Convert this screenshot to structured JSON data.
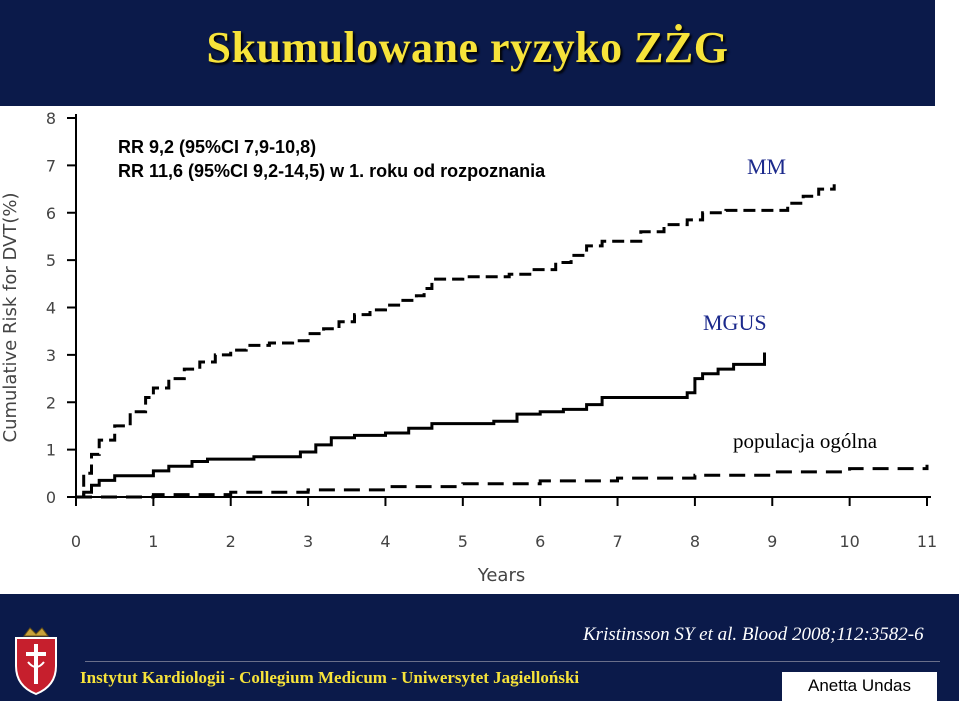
{
  "slide": {
    "title": "Skumulowane ryzyko ZŻG",
    "notes": [
      "RR 9,2 (95%CI 7,9-10,8)",
      "RR 11,6 (95%CI 9,2-14,5) w 1. roku od rozpoznania"
    ],
    "citation": "Kristinsson SY et al. Blood 2008;112:3582-6",
    "institute": "Instytut Kardiologii - Collegium Medicum - Uniwersytet Jagielloński",
    "author": "Anetta Undas"
  },
  "colors": {
    "band": "#0b1a4a",
    "title": "#f7e33a",
    "series_label": "#1c2a8c",
    "curve": "#000000"
  },
  "chart_data": {
    "type": "line",
    "ylabel": "Cumulative Risk for DVT(%)",
    "xlabel": "Years",
    "xlim": [
      0,
      11
    ],
    "ylim": [
      0,
      8
    ],
    "x_ticks": [
      "0",
      "1",
      "2",
      "3",
      "4",
      "5",
      "6",
      "7",
      "8",
      "9",
      "10",
      "11"
    ],
    "y_ticks": [
      "0",
      "1",
      "2",
      "3",
      "4",
      "5",
      "6",
      "7",
      "8"
    ],
    "grid": false,
    "series": [
      {
        "name": "MM",
        "style": "dashed",
        "x": [
          0,
          0.1,
          0.2,
          0.3,
          0.5,
          0.7,
          0.9,
          1.0,
          1.2,
          1.4,
          1.6,
          1.8,
          2.0,
          2.2,
          2.5,
          2.8,
          3.0,
          3.2,
          3.4,
          3.6,
          3.8,
          4.0,
          4.2,
          4.4,
          4.5,
          4.6,
          5.0,
          5.2,
          5.6,
          5.9,
          6.2,
          6.4,
          6.6,
          6.8,
          7.0,
          7.3,
          7.6,
          7.9,
          8.1,
          8.4,
          8.8,
          9.0,
          9.2,
          9.4,
          9.6,
          9.8
        ],
        "y": [
          0,
          0.5,
          0.9,
          1.2,
          1.5,
          1.8,
          2.1,
          2.3,
          2.5,
          2.7,
          2.85,
          3.0,
          3.1,
          3.2,
          3.25,
          3.3,
          3.45,
          3.55,
          3.7,
          3.85,
          3.95,
          4.05,
          4.15,
          4.25,
          4.4,
          4.6,
          4.65,
          4.65,
          4.7,
          4.8,
          4.95,
          5.1,
          5.3,
          5.4,
          5.4,
          5.6,
          5.75,
          5.85,
          6.0,
          6.05,
          6.05,
          6.05,
          6.2,
          6.35,
          6.5,
          6.6
        ]
      },
      {
        "name": "MGUS",
        "style": "solid",
        "x": [
          0,
          0.1,
          0.2,
          0.3,
          0.5,
          0.8,
          1.0,
          1.2,
          1.5,
          1.7,
          2.0,
          2.3,
          2.7,
          2.9,
          3.1,
          3.3,
          3.6,
          4.0,
          4.3,
          4.6,
          5.0,
          5.4,
          5.7,
          6.0,
          6.3,
          6.6,
          6.8,
          7.2,
          7.6,
          7.9,
          8.0,
          8.1,
          8.3,
          8.5,
          8.7,
          8.9
        ],
        "y": [
          0,
          0.1,
          0.25,
          0.35,
          0.45,
          0.45,
          0.55,
          0.65,
          0.75,
          0.8,
          0.8,
          0.85,
          0.85,
          0.95,
          1.1,
          1.25,
          1.3,
          1.35,
          1.45,
          1.55,
          1.55,
          1.6,
          1.75,
          1.8,
          1.85,
          1.95,
          2.1,
          2.1,
          2.1,
          2.2,
          2.5,
          2.6,
          2.7,
          2.8,
          2.8,
          3.05
        ]
      },
      {
        "name": "populacja ogólna",
        "style": "dashed",
        "x": [
          0,
          1,
          2,
          3,
          4,
          5,
          6,
          7,
          8,
          9,
          10,
          11
        ],
        "y": [
          0,
          0.05,
          0.1,
          0.15,
          0.22,
          0.28,
          0.34,
          0.4,
          0.46,
          0.53,
          0.6,
          0.68
        ]
      }
    ]
  }
}
